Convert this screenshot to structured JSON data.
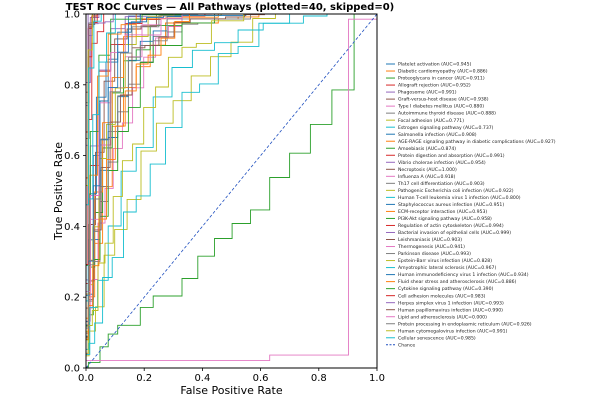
{
  "chart_data": {
    "type": "line",
    "title": "TEST ROC Curves — All Pathways (plotted=40, skipped=0)",
    "xlabel": "False Positive Rate",
    "ylabel": "True Positive Rate",
    "xlim": [
      0,
      1
    ],
    "ylim": [
      0,
      1
    ],
    "xticks": [
      "0.0",
      "0.2",
      "0.4",
      "0.6",
      "0.8",
      "1.0"
    ],
    "yticks": [
      "0.0",
      "0.2",
      "0.4",
      "0.6",
      "0.8",
      "1.0"
    ],
    "grid": false,
    "legend_position": "right",
    "chance_label": "Chance",
    "series": [
      {
        "name": "Platelet activation (AUC=0.945)",
        "auc": 0.945,
        "color": "#1f77b4"
      },
      {
        "name": "Diabetic cardiomyopathy (AUC=0.886)",
        "auc": 0.886,
        "color": "#ff7f0e"
      },
      {
        "name": "Proteoglycans in cancer (AUC=0.911)",
        "auc": 0.911,
        "color": "#2ca02c"
      },
      {
        "name": "Allograft rejection (AUC=0.952)",
        "auc": 0.952,
        "color": "#d62728"
      },
      {
        "name": "Phagosome (AUC=0.991)",
        "auc": 0.991,
        "color": "#9467bd"
      },
      {
        "name": "Graft-versus-host disease (AUC=0.938)",
        "auc": 0.938,
        "color": "#8c564b"
      },
      {
        "name": "Type I diabetes mellitus (AUC=0.880)",
        "auc": 0.88,
        "color": "#e377c2"
      },
      {
        "name": "Autoimmune thyroid disease (AUC=0.888)",
        "auc": 0.888,
        "color": "#7f7f7f"
      },
      {
        "name": "Focal adhesion (AUC=0.771)",
        "auc": 0.771,
        "color": "#bcbd22"
      },
      {
        "name": "Estrogen signaling pathway (AUC=0.737)",
        "auc": 0.737,
        "color": "#17becf"
      },
      {
        "name": "Salmonella infection (AUC=0.908)",
        "auc": 0.908,
        "color": "#1f77b4"
      },
      {
        "name": "AGE-RAGE signaling pathway in diabetic complications (AUC=0.927)",
        "auc": 0.927,
        "color": "#ff7f0e"
      },
      {
        "name": "Amoebiasis (AUC=0.874)",
        "auc": 0.874,
        "color": "#2ca02c"
      },
      {
        "name": "Protein digestion and absorption (AUC=0.991)",
        "auc": 0.991,
        "color": "#d62728"
      },
      {
        "name": "Vibrio cholerae infection (AUC=0.954)",
        "auc": 0.954,
        "color": "#9467bd"
      },
      {
        "name": "Necroptosis (AUC=1.000)",
        "auc": 1.0,
        "color": "#8c564b"
      },
      {
        "name": "Influenza A (AUC=0.918)",
        "auc": 0.918,
        "color": "#e377c2"
      },
      {
        "name": "Th17 cell differentiation (AUC=0.903)",
        "auc": 0.903,
        "color": "#7f7f7f"
      },
      {
        "name": "Pathogenic Escherichia coli infection (AUC=0.922)",
        "auc": 0.922,
        "color": "#bcbd22"
      },
      {
        "name": "Human T-cell leukemia virus 1 infection (AUC=0.800)",
        "auc": 0.8,
        "color": "#17becf"
      },
      {
        "name": "Staphylococcus aureus infection (AUC=0.951)",
        "auc": 0.951,
        "color": "#1f77b4"
      },
      {
        "name": "ECM-receptor interaction (AUC=0.953)",
        "auc": 0.953,
        "color": "#ff7f0e"
      },
      {
        "name": "PI3K-Akt signaling pathway (AUC=0.958)",
        "auc": 0.958,
        "color": "#2ca02c"
      },
      {
        "name": "Regulation of actin cytoskeleton (AUC=0.994)",
        "auc": 0.994,
        "color": "#d62728"
      },
      {
        "name": "Bacterial invasion of epithelial cells (AUC=0.999)",
        "auc": 0.999,
        "color": "#9467bd"
      },
      {
        "name": "Leishmaniasis (AUC=0.903)",
        "auc": 0.903,
        "color": "#8c564b"
      },
      {
        "name": "Thermogenesis (AUC=0.941)",
        "auc": 0.941,
        "color": "#e377c2"
      },
      {
        "name": "Parkinson disease (AUC=0.993)",
        "auc": 0.993,
        "color": "#7f7f7f"
      },
      {
        "name": "Epstein-Barr virus infection (AUC=0.828)",
        "auc": 0.828,
        "color": "#bcbd22"
      },
      {
        "name": "Amyotrophic lateral sclerosis (AUC=0.967)",
        "auc": 0.967,
        "color": "#17becf"
      },
      {
        "name": "Human immunodeficiency virus 1 infection (AUC=0.934)",
        "auc": 0.934,
        "color": "#1f77b4"
      },
      {
        "name": "Fluid shear stress and atherosclerosis (AUC=0.886)",
        "auc": 0.886,
        "color": "#ff7f0e"
      },
      {
        "name": "Cytokine signaling pathway (AUC=0.390)",
        "auc": 0.39,
        "color": "#2ca02c"
      },
      {
        "name": "Cell adhesion molecules (AUC=0.983)",
        "auc": 0.983,
        "color": "#d62728"
      },
      {
        "name": "Herpes simplex virus 1 infection (AUC=0.993)",
        "auc": 0.993,
        "color": "#9467bd"
      },
      {
        "name": "Human papillomavirus infection (AUC=0.990)",
        "auc": 0.99,
        "color": "#8c564b"
      },
      {
        "name": "Lipid and atherosclerosis (AUC=0.000)",
        "auc": 0.0,
        "color": "#e377c2"
      },
      {
        "name": "Protein processing in endoplasmic reticulum (AUC=0.926)",
        "auc": 0.926,
        "color": "#7f7f7f"
      },
      {
        "name": "Human cytomegalovirus infection (AUC=0.991)",
        "auc": 0.991,
        "color": "#bcbd22"
      },
      {
        "name": "Cellular senescence (AUC=0.985)",
        "auc": 0.985,
        "color": "#17becf"
      }
    ]
  }
}
